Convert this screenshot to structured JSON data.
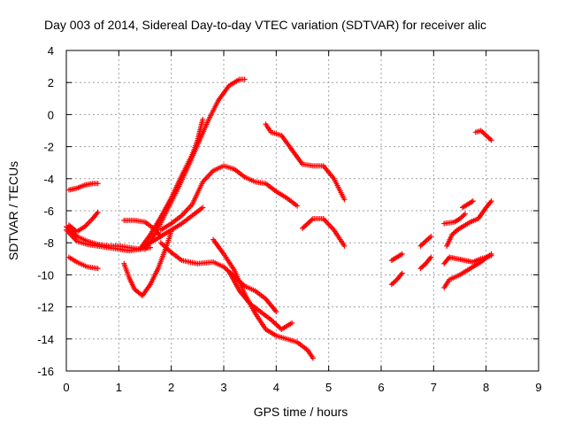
{
  "chart_data": {
    "type": "scatter",
    "title": "Day 003 of 2014, Sidereal Day-to-day VTEC variation (SDTVAR) for receiver alic",
    "xlabel": "GPS time / hours",
    "ylabel": "SDTVAR / TECUs",
    "xlim": [
      0,
      9
    ],
    "ylim": [
      -16,
      4
    ],
    "xticks": [
      "0",
      "1",
      "2",
      "3",
      "4",
      "5",
      "6",
      "7",
      "8",
      "9"
    ],
    "yticks": [
      "-16",
      "-14",
      "-12",
      "-10",
      "-8",
      "-6",
      "-4",
      "-2",
      "0",
      "2",
      "4"
    ],
    "grid": true,
    "legend": "none",
    "marker": "plus",
    "color": "#ff0000",
    "series": [
      {
        "x": [
          0.05,
          0.2,
          0.35,
          0.5,
          0.6
        ],
        "y": [
          -4.7,
          -4.6,
          -4.4,
          -4.3,
          -4.3
        ]
      },
      {
        "x": [
          0.05,
          0.2,
          0.35,
          0.5,
          0.6
        ],
        "y": [
          -6.9,
          -7.3,
          -7.0,
          -6.5,
          -6.1
        ]
      },
      {
        "x": [
          0.0,
          0.2,
          0.4,
          0.6,
          0.8,
          1.0,
          1.2,
          1.4,
          1.6,
          1.8,
          2.0,
          2.2,
          2.4,
          2.6
        ],
        "y": [
          -7.0,
          -7.6,
          -7.9,
          -8.1,
          -8.2,
          -8.2,
          -8.3,
          -8.4,
          -8.0,
          -7.6,
          -7.2,
          -6.8,
          -6.3,
          -5.8
        ]
      },
      {
        "x": [
          0.0,
          0.2,
          0.4,
          0.6,
          0.8,
          1.0,
          1.2,
          1.4,
          1.6
        ],
        "y": [
          -7.2,
          -7.9,
          -8.1,
          -8.2,
          -8.3,
          -8.4,
          -8.5,
          -8.4,
          -8.3
        ]
      },
      {
        "x": [
          0.05,
          0.2,
          0.4,
          0.6
        ],
        "y": [
          -8.9,
          -9.2,
          -9.5,
          -9.6
        ]
      },
      {
        "x": [
          1.1,
          1.3,
          1.5,
          1.7,
          1.8
        ],
        "y": [
          -6.6,
          -6.6,
          -6.7,
          -7.2,
          -7.6
        ]
      },
      {
        "x": [
          1.1,
          1.2,
          1.3,
          1.45,
          1.6,
          1.75,
          1.9,
          2.0
        ],
        "y": [
          -9.3,
          -10.2,
          -10.9,
          -11.3,
          -10.6,
          -9.6,
          -8.3,
          -7.3
        ]
      },
      {
        "x": [
          1.4,
          1.6,
          1.8,
          2.0,
          2.2,
          2.4,
          2.5,
          2.6
        ],
        "y": [
          -8.4,
          -7.5,
          -6.4,
          -5.2,
          -3.8,
          -2.5,
          -1.6,
          -0.3
        ]
      },
      {
        "x": [
          1.5,
          1.7,
          1.9,
          2.1,
          2.3,
          2.5,
          2.7,
          2.9,
          3.1,
          3.3,
          3.4
        ],
        "y": [
          -8.4,
          -7.4,
          -6.1,
          -4.8,
          -3.4,
          -1.9,
          -0.4,
          0.9,
          1.8,
          2.2,
          2.2
        ]
      },
      {
        "x": [
          1.8,
          2.0,
          2.2,
          2.4,
          2.6,
          2.8,
          3.0,
          3.2,
          3.4,
          3.6,
          3.8,
          4.0,
          4.2,
          4.4
        ],
        "y": [
          -7.2,
          -6.8,
          -6.3,
          -5.6,
          -4.2,
          -3.5,
          -3.2,
          -3.4,
          -3.9,
          -4.2,
          -4.3,
          -4.8,
          -5.2,
          -5.7
        ]
      },
      {
        "x": [
          1.8,
          2.0,
          2.2,
          2.5,
          2.8,
          3.0,
          3.2,
          3.4,
          3.6,
          3.8,
          4.0
        ],
        "y": [
          -8.0,
          -8.6,
          -9.1,
          -9.3,
          -9.2,
          -9.5,
          -10.1,
          -10.7,
          -11.0,
          -11.5,
          -12.3
        ]
      },
      {
        "x": [
          2.8,
          3.0,
          3.2,
          3.4,
          3.6,
          3.8,
          4.0,
          4.2,
          4.4,
          4.6,
          4.7
        ],
        "y": [
          -7.8,
          -8.7,
          -9.7,
          -11.2,
          -12.4,
          -13.4,
          -13.8,
          -14.0,
          -14.2,
          -14.7,
          -15.2
        ]
      },
      {
        "x": [
          3.1,
          3.3,
          3.5,
          3.7,
          3.9,
          4.1,
          4.3
        ],
        "y": [
          -9.8,
          -11.0,
          -11.8,
          -12.3,
          -12.8,
          -13.4,
          -13.0
        ]
      },
      {
        "x": [
          3.8,
          3.9,
          4.1,
          4.3,
          4.5,
          4.7,
          4.9,
          5.1,
          5.3
        ],
        "y": [
          -0.6,
          -1.1,
          -1.3,
          -2.2,
          -3.1,
          -3.2,
          -3.2,
          -4.0,
          -5.3
        ]
      },
      {
        "x": [
          4.5,
          4.7,
          4.9,
          5.1,
          5.3
        ],
        "y": [
          -7.1,
          -6.5,
          -6.5,
          -7.2,
          -8.2
        ]
      },
      {
        "x": [
          6.2,
          6.3,
          6.4
        ],
        "y": [
          -9.1,
          -8.9,
          -8.7
        ]
      },
      {
        "x": [
          6.2,
          6.3,
          6.4
        ],
        "y": [
          -10.6,
          -10.3,
          -9.9
        ]
      },
      {
        "x": [
          6.75,
          6.85,
          6.95
        ],
        "y": [
          -8.2,
          -7.9,
          -7.6
        ]
      },
      {
        "x": [
          6.75,
          6.85,
          6.95
        ],
        "y": [
          -9.6,
          -9.3,
          -8.9
        ]
      },
      {
        "x": [
          7.2,
          7.4,
          7.5,
          7.6
        ],
        "y": [
          -6.8,
          -6.7,
          -6.5,
          -6.2
        ]
      },
      {
        "x": [
          7.25,
          7.35,
          7.45,
          7.55,
          7.7,
          7.85,
          8.0,
          8.1
        ],
        "y": [
          -8.2,
          -7.5,
          -7.2,
          -7.0,
          -6.7,
          -6.5,
          -5.8,
          -5.4
        ]
      },
      {
        "x": [
          7.2,
          7.3,
          7.5,
          7.7,
          7.9,
          8.1
        ],
        "y": [
          -10.8,
          -10.3,
          -10.0,
          -9.6,
          -9.2,
          -8.7
        ]
      },
      {
        "x": [
          7.2,
          7.3,
          7.45,
          7.6,
          7.75,
          7.9,
          8.1
        ],
        "y": [
          -9.3,
          -8.9,
          -9.0,
          -9.1,
          -9.2,
          -9.0,
          -8.8
        ]
      },
      {
        "x": [
          7.8,
          7.9,
          8.0,
          8.1
        ],
        "y": [
          -1.1,
          -1.0,
          -1.3,
          -1.6
        ]
      },
      {
        "x": [
          7.55,
          7.65,
          7.75
        ],
        "y": [
          -5.8,
          -5.6,
          -5.4
        ]
      }
    ]
  }
}
